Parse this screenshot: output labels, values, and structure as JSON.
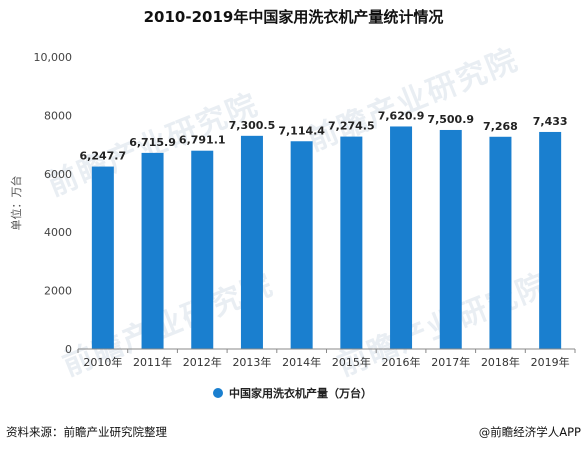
{
  "title": "2010-2019年中国家用洗衣机产量统计情况",
  "watermark": "前瞻产业研究院",
  "source": "资料来源：前瞻产业研究院整理",
  "credit": "@前瞻经济学人APP",
  "chart_data": {
    "type": "bar",
    "ylabel": "单位：万台",
    "ylim": [
      0,
      10000
    ],
    "yticks": [
      "0",
      "2000",
      "4000",
      "6000",
      "8000",
      "10,000"
    ],
    "ytick_values": [
      0,
      2000,
      4000,
      6000,
      8000,
      10000
    ],
    "categories": [
      "2010年",
      "2011年",
      "2012年",
      "2013年",
      "2014年",
      "2015年",
      "2016年",
      "2017年",
      "2018年",
      "2019年"
    ],
    "series": [
      {
        "name": "中国家用洗衣机产量（万台）",
        "values": [
          6247.7,
          6715.9,
          6791.1,
          7300.5,
          7114.4,
          7274.5,
          7620.9,
          7500.9,
          7268,
          7433
        ],
        "labels": [
          "6,247.7",
          "6,715.9",
          "6,791.1",
          "7,300.5",
          "7,114.4",
          "7,274.5",
          "7,620.9",
          "7,500.9",
          "7,268",
          "7,433"
        ]
      }
    ],
    "bar_color": "#1a7fcf",
    "grid": false,
    "legend_position": "bottom"
  }
}
